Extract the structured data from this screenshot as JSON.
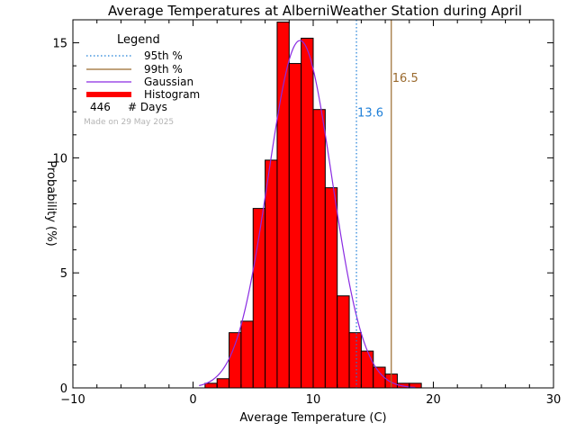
{
  "chart_data": {
    "type": "bar",
    "title": "Average Temperatures at AlberniWeather Station during April",
    "xlabel": "Average Temperature (C)",
    "ylabel": "Probability (%)",
    "xlim": [
      -10,
      30
    ],
    "ylim": [
      0,
      16
    ],
    "xticks": [
      -10,
      0,
      10,
      20,
      30
    ],
    "yticks": [
      0,
      5,
      10,
      15
    ],
    "bin_width": 1,
    "bins": [
      {
        "x0": 1,
        "value": 0.2
      },
      {
        "x0": 2,
        "value": 0.4
      },
      {
        "x0": 3,
        "value": 2.4
      },
      {
        "x0": 4,
        "value": 2.9
      },
      {
        "x0": 5,
        "value": 7.8
      },
      {
        "x0": 6,
        "value": 9.9
      },
      {
        "x0": 7,
        "value": 15.9
      },
      {
        "x0": 8,
        "value": 14.1
      },
      {
        "x0": 9,
        "value": 15.2
      },
      {
        "x0": 10,
        "value": 12.1
      },
      {
        "x0": 11,
        "value": 8.7
      },
      {
        "x0": 12,
        "value": 4.0
      },
      {
        "x0": 13,
        "value": 2.4
      },
      {
        "x0": 14,
        "value": 1.6
      },
      {
        "x0": 15,
        "value": 0.9
      },
      {
        "x0": 16,
        "value": 0.6
      },
      {
        "x0": 17,
        "value": 0.2
      },
      {
        "x0": 18,
        "value": 0.2
      }
    ],
    "gaussian": {
      "mean": 8.9,
      "sigma": 2.65,
      "peak": 15.1,
      "x_range": [
        0.5,
        18.5
      ]
    },
    "p95": {
      "value": 13.6,
      "label": "13.6",
      "color": "#1e7fd8",
      "label_y": 12.0
    },
    "p99": {
      "value": 16.5,
      "label": "16.5",
      "color": "#9a6a2e",
      "label_y": 13.5
    },
    "colors": {
      "histogram": "#ff0000",
      "gaussian": "#8a2be2",
      "frame": "#000000"
    },
    "legend": {
      "title": "Legend",
      "position": "top-left",
      "entries": [
        {
          "label": "95th %",
          "style": "dotted",
          "color": "#1e7fd8"
        },
        {
          "label": "99th %",
          "style": "solid",
          "color": "#9a6a2e"
        },
        {
          "label": "Gaussian",
          "style": "solid",
          "color": "#8a2be2"
        },
        {
          "label": "Histogram",
          "style": "thick",
          "color": "#ff0000"
        }
      ],
      "days_count": "446",
      "days_label": "# Days"
    },
    "made_on": "Made on 29 May 2025"
  }
}
